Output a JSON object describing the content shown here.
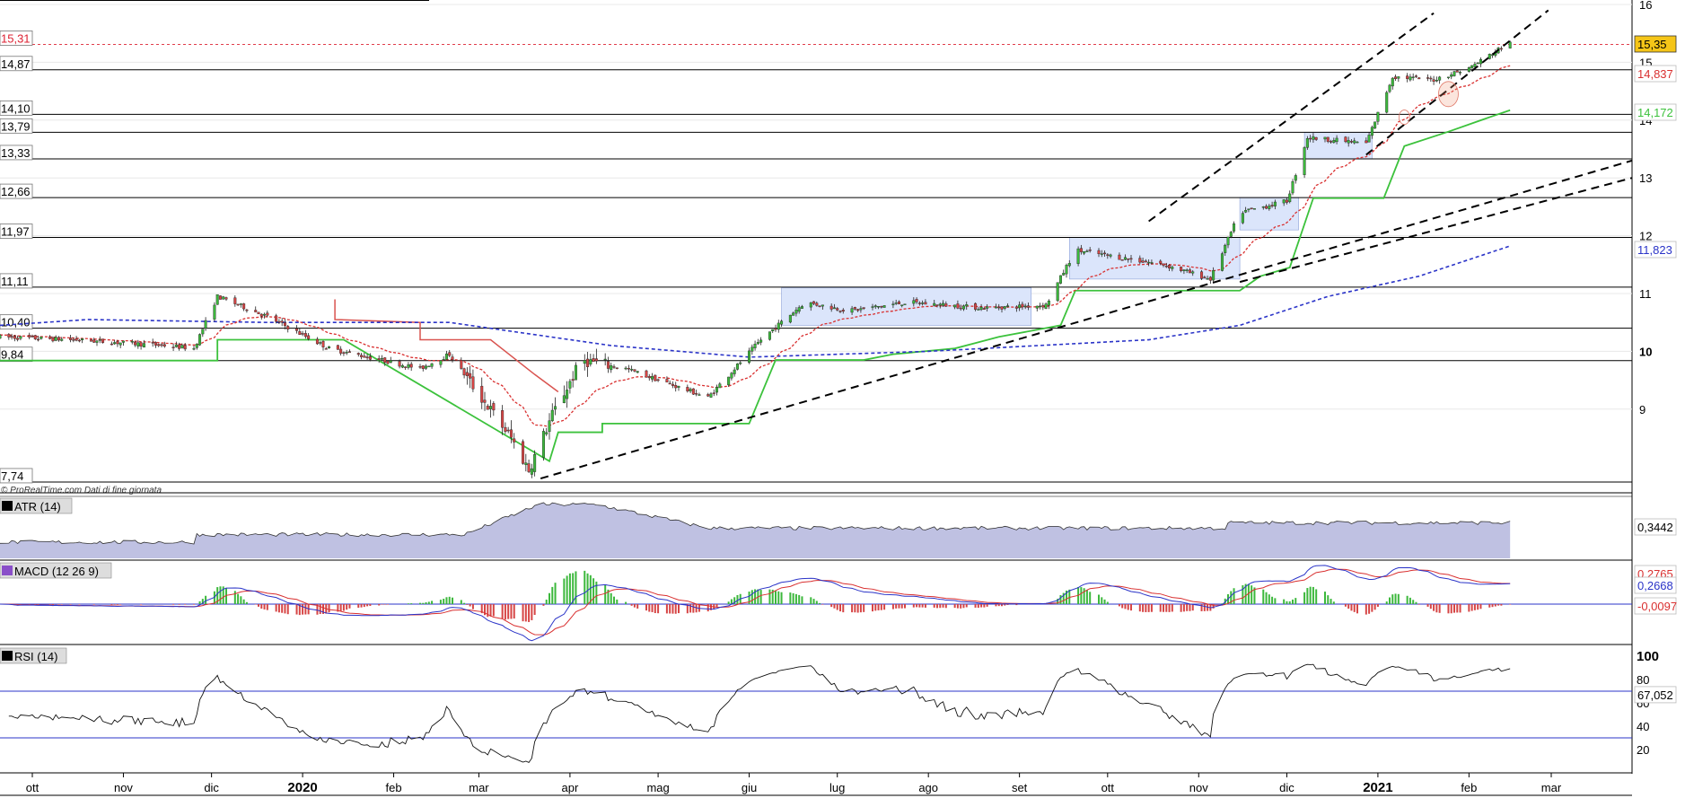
{
  "source_note": "© ProRealTime.com  Dati di fine giornata",
  "colors": {
    "up": "#3cb83c",
    "down": "#d64545",
    "supertrend": "#3cc23c",
    "supertrend_bear": "#d9534f",
    "ma_fast": "#d93030",
    "ma_slow": "#2b34c8",
    "atr_fill": "#a9acd8",
    "macd_line": "#2b34c8",
    "macd_signal": "#d93030",
    "box_fill": "#dbe5fb"
  },
  "chart_data": [
    {
      "type": "candlestick",
      "title": "",
      "price_axis": {
        "ticks": [
          "16",
          "15",
          "14",
          "13",
          "12",
          "11",
          "10",
          "9"
        ],
        "range": [
          7.74,
          16
        ]
      },
      "x_axis": {
        "ticks": [
          "ott",
          "nov",
          "dic",
          "2020",
          "feb",
          "mar",
          "apr",
          "mag",
          "giu",
          "lug",
          "ago",
          "set",
          "ott",
          "nov",
          "dic",
          "2021",
          "feb",
          "mar"
        ]
      },
      "horizontal_levels": [
        "15,31",
        "14,87",
        "14,10",
        "13,79",
        "13,33",
        "12,66",
        "11,97",
        "11,11",
        "10,40",
        "9,84",
        "7,74"
      ],
      "price_labels": {
        "last": "15,35",
        "ma_fast": "14,837",
        "supertrend": "14,172",
        "ma_slow": "11,823"
      },
      "ohlc_waypoints": [
        {
          "t": "2019-09-20",
          "close": 10.25
        },
        {
          "t": "2019-10-15",
          "close": 10.2
        },
        {
          "t": "2019-11-15",
          "close": 10.1
        },
        {
          "t": "2019-11-25",
          "close": 10.05
        },
        {
          "t": "2019-12-03",
          "close": 10.95
        },
        {
          "t": "2019-12-20",
          "close": 10.6
        },
        {
          "t": "2020-01-10",
          "close": 10.05
        },
        {
          "t": "2020-02-10",
          "close": 9.7
        },
        {
          "t": "2020-02-20",
          "close": 9.95
        },
        {
          "t": "2020-03-12",
          "close": 8.5
        },
        {
          "t": "2020-03-18",
          "close": 7.95
        },
        {
          "t": "2020-03-26",
          "close": 8.9
        },
        {
          "t": "2020-04-05",
          "close": 9.85
        },
        {
          "t": "2020-04-20",
          "close": 9.7
        },
        {
          "t": "2020-05-18",
          "close": 9.2
        },
        {
          "t": "2020-06-05",
          "close": 10.2
        },
        {
          "t": "2020-06-20",
          "close": 10.85
        },
        {
          "t": "2020-07-05",
          "close": 10.7
        },
        {
          "t": "2020-07-25",
          "close": 10.85
        },
        {
          "t": "2020-08-20",
          "close": 10.75
        },
        {
          "t": "2020-09-10",
          "close": 10.8
        },
        {
          "t": "2020-09-20",
          "close": 11.75
        },
        {
          "t": "2020-10-20",
          "close": 11.5
        },
        {
          "t": "2020-11-05",
          "close": 11.25
        },
        {
          "t": "2020-11-15",
          "close": 12.4
        },
        {
          "t": "2020-12-01",
          "close": 12.6
        },
        {
          "t": "2020-12-08",
          "close": 13.7
        },
        {
          "t": "2020-12-28",
          "close": 13.6
        },
        {
          "t": "2021-01-06",
          "close": 14.75
        },
        {
          "t": "2021-01-20",
          "close": 14.7
        },
        {
          "t": "2021-02-01",
          "close": 14.9
        },
        {
          "t": "2021-02-15",
          "close": 15.35
        }
      ]
    },
    {
      "type": "area",
      "title": "ATR (14)",
      "value_label": "0,3442"
    },
    {
      "type": "line",
      "title": "MACD (12 26 9)",
      "value_labels": {
        "signal": "0,2765",
        "macd": "0,2668",
        "histogram": "-0,0097"
      }
    },
    {
      "type": "line",
      "title": "RSI (14)",
      "y_axis": {
        "ticks": [
          "100",
          "80",
          "60",
          "40",
          "20"
        ]
      },
      "value_label": "67,052"
    }
  ]
}
